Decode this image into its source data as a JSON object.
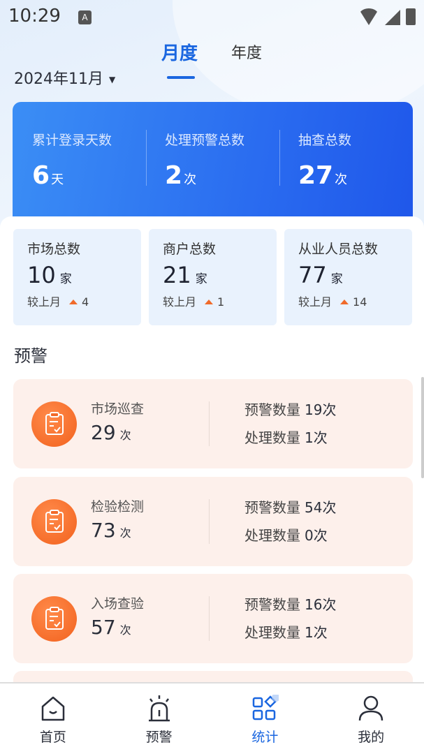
{
  "status_bar": {
    "time": "10:29",
    "notification_icon": "A"
  },
  "tabs": [
    {
      "label": "月度",
      "active": true
    },
    {
      "label": "年度",
      "active": false
    }
  ],
  "date_picker": {
    "value": "2024年11月"
  },
  "summary": [
    {
      "label": "累计登录天数",
      "value": "6",
      "unit": "天"
    },
    {
      "label": "处理预警总数",
      "value": "2",
      "unit": "次"
    },
    {
      "label": "抽查总数",
      "value": "27",
      "unit": "次"
    }
  ],
  "stats": [
    {
      "label": "市场总数",
      "value": "10",
      "unit": "家",
      "compare_label": "较上月",
      "change": "4"
    },
    {
      "label": "商户总数",
      "value": "21",
      "unit": "家",
      "compare_label": "较上月",
      "change": "1"
    },
    {
      "label": "从业人员总数",
      "value": "77",
      "unit": "家",
      "compare_label": "较上月",
      "change": "14"
    }
  ],
  "warning_section": {
    "title": "预警"
  },
  "warnings": [
    {
      "name": "市场巡查",
      "count": "29",
      "unit": "次",
      "warn_label": "预警数量",
      "warn_value": "19次",
      "handle_label": "处理数量",
      "handle_value": "1次"
    },
    {
      "name": "检验检测",
      "count": "73",
      "unit": "次",
      "warn_label": "预警数量",
      "warn_value": "54次",
      "handle_label": "处理数量",
      "handle_value": "0次"
    },
    {
      "name": "入场查验",
      "count": "57",
      "unit": "次",
      "warn_label": "预警数量",
      "warn_value": "16次",
      "handle_label": "处理数量",
      "handle_value": "1次"
    }
  ],
  "nav": [
    {
      "label": "首页",
      "icon": "home-icon"
    },
    {
      "label": "预警",
      "icon": "alarm-icon"
    },
    {
      "label": "统计",
      "icon": "grid-icon",
      "active": true
    },
    {
      "label": "我的",
      "icon": "user-icon"
    }
  ],
  "colors": {
    "accent": "#1a66e0",
    "warning_card": "#fdf0eb",
    "icon_orange": "#f2621e"
  }
}
